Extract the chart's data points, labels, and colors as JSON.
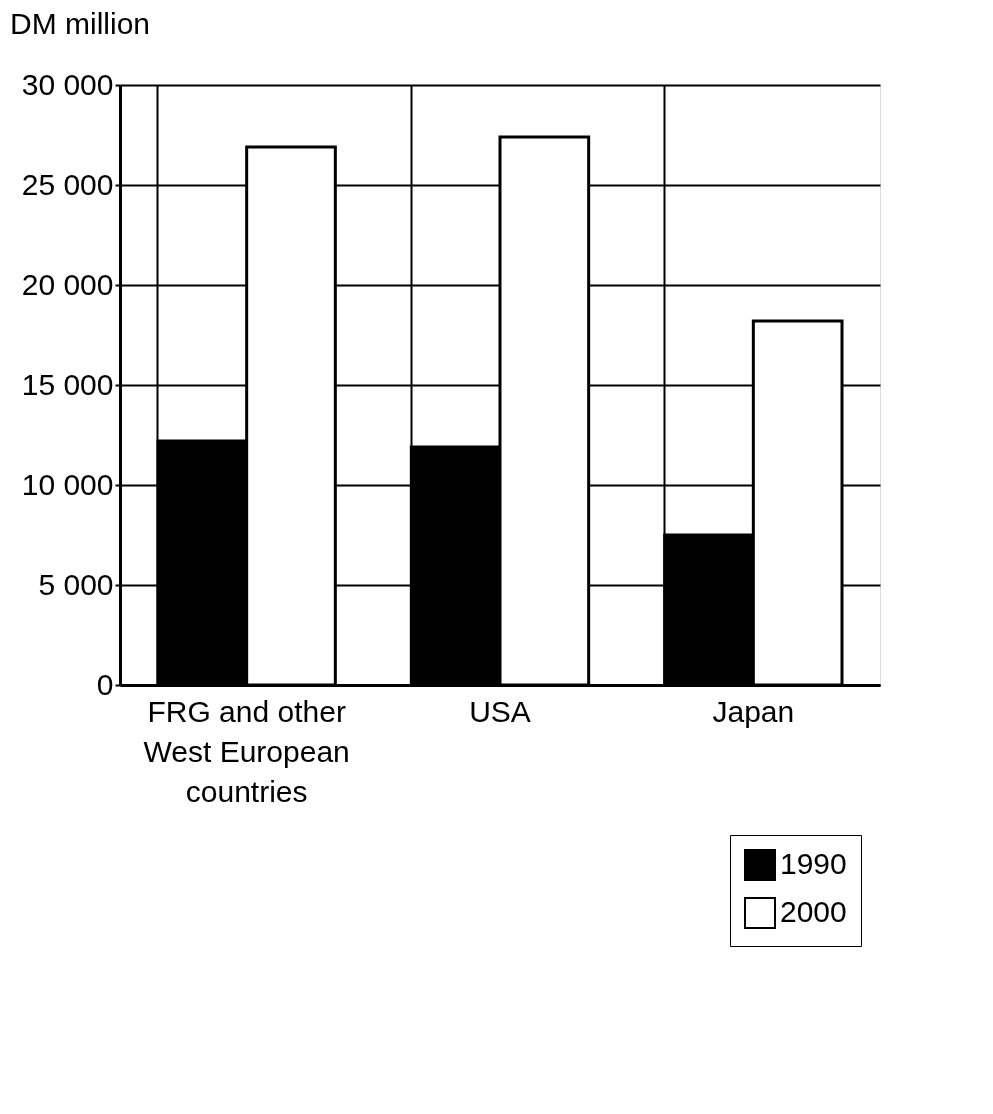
{
  "chart_data": {
    "type": "bar",
    "ylabel": "DM million",
    "categories": [
      "FRG and other West European countries",
      "USA",
      "Japan"
    ],
    "series": [
      {
        "name": "1990",
        "color": "#000000",
        "values": [
          12200,
          11900,
          7500
        ]
      },
      {
        "name": "2000",
        "color": "#ffffff",
        "values": [
          26900,
          27400,
          18200
        ]
      }
    ],
    "ylim": [
      0,
      30000
    ],
    "yticks": [
      0,
      {
        "value": 5000,
        "label": "5 000"
      },
      {
        "value": 10000,
        "label": "10 000"
      },
      {
        "value": 15000,
        "label": "15 000"
      },
      {
        "value": 20000,
        "label": "20 000"
      },
      {
        "value": 25000,
        "label": "25 000"
      },
      {
        "value": 30000,
        "label": "30 000"
      }
    ],
    "grid": true,
    "legend": "bottom right"
  }
}
